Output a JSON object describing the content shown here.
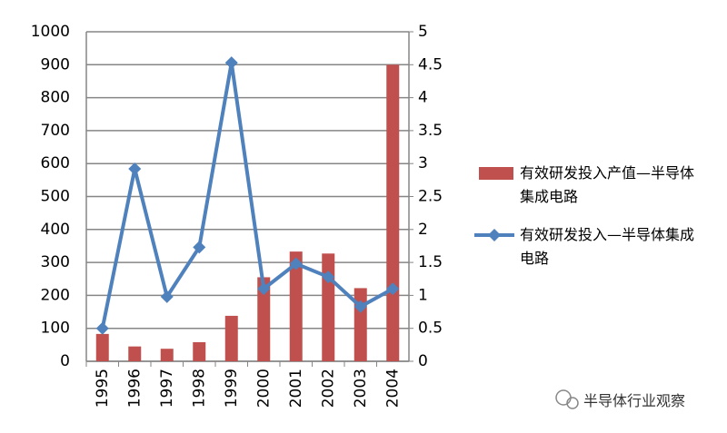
{
  "chart_data": {
    "type": "bar",
    "categories": [
      "1995",
      "1996",
      "1997",
      "1998",
      "1999",
      "2000",
      "2001",
      "2002",
      "2003",
      "2004"
    ],
    "series": [
      {
        "name": "有效研发投入产值—半导体集成电路",
        "color": "#c0504d",
        "type": "bar",
        "values": [
          83,
          45,
          38,
          58,
          138,
          255,
          333,
          327,
          222,
          900
        ]
      },
      {
        "name": "有效研发投入—半导体集成电路",
        "color": "#4f81bd",
        "type": "line",
        "axis": "y2",
        "values": [
          0.5,
          2.92,
          0.98,
          1.73,
          4.53,
          1.1,
          1.48,
          1.28,
          0.83,
          1.1
        ]
      }
    ],
    "ylim": [
      0,
      1000
    ],
    "yticks": [
      0,
      100,
      200,
      300,
      400,
      500,
      600,
      700,
      800,
      900,
      1000
    ],
    "y2lim": [
      0,
      5
    ],
    "y2ticks": [
      0,
      0.5,
      1,
      1.5,
      2,
      2.5,
      3,
      3.5,
      4,
      4.5,
      5
    ],
    "grid": true,
    "legend": "right",
    "watermark": "半导体行业观察"
  }
}
